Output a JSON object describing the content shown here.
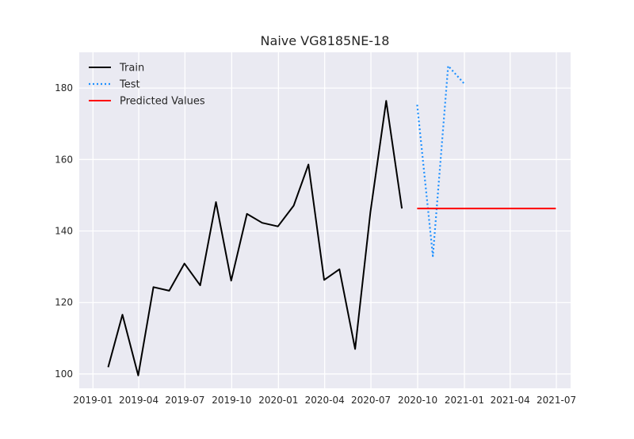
{
  "chart_data": {
    "type": "line",
    "title": "Naive VG8185NE-18",
    "xlabel": "",
    "ylabel": "",
    "xlim": [
      "2018-12-05",
      "2021-07-29"
    ],
    "ylim": [
      96,
      190
    ],
    "x_ticks": [
      "2019-01",
      "2019-04",
      "2019-07",
      "2019-10",
      "2020-01",
      "2020-04",
      "2020-07",
      "2020-10",
      "2021-01",
      "2021-04",
      "2021-07"
    ],
    "y_ticks": [
      100,
      120,
      140,
      160,
      180
    ],
    "grid": true,
    "legend_position": "upper-left",
    "series": [
      {
        "name": "Train",
        "color": "#000000",
        "style": "solid",
        "x": [
          "2019-01-31",
          "2019-02-28",
          "2019-03-31",
          "2019-04-30",
          "2019-05-31",
          "2019-06-30",
          "2019-07-31",
          "2019-08-31",
          "2019-09-30",
          "2019-10-31",
          "2019-11-30",
          "2019-12-31",
          "2020-01-31",
          "2020-02-29",
          "2020-03-31",
          "2020-04-30",
          "2020-05-31",
          "2020-06-30",
          "2020-07-31",
          "2020-08-31"
        ],
        "y": [
          101.9,
          116.6,
          99.6,
          124.3,
          123.3,
          130.9,
          124.8,
          148.1,
          126.1,
          144.8,
          142.3,
          141.3,
          147.1,
          158.6,
          126.3,
          129.3,
          107.0,
          145.3,
          176.4,
          146.3
        ]
      },
      {
        "name": "Test",
        "color": "#1e90ff",
        "style": "dotted",
        "x": [
          "2020-09-30",
          "2020-10-31",
          "2020-11-30",
          "2020-12-31"
        ],
        "y": [
          175.3,
          133.0,
          186.2,
          181.3
        ]
      },
      {
        "name": "Predicted Values",
        "color": "#ff0000",
        "style": "solid",
        "x": [
          "2020-09-30",
          "2021-06-30"
        ],
        "y": [
          146.3,
          146.3
        ]
      }
    ]
  }
}
